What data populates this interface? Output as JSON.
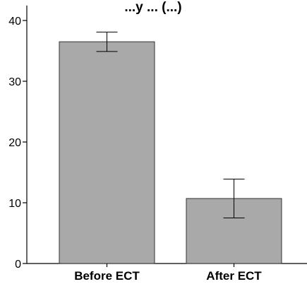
{
  "chart_data": {
    "type": "bar",
    "title": "...y ... (...)",
    "xlabel": "",
    "ylabel": "",
    "categories": [
      "Before ECT",
      "After ECT"
    ],
    "values": [
      36.5,
      10.7
    ],
    "error": {
      "upper": [
        38.1,
        13.9
      ],
      "lower": [
        34.9,
        7.5
      ]
    },
    "ylim": [
      0,
      42
    ],
    "yticks": [
      0,
      10,
      20,
      30,
      40
    ],
    "ytick_labels": [
      "0",
      "10",
      "20",
      "30",
      "40"
    ],
    "grid": false,
    "legend": "none",
    "colors": {
      "bar_fill": "#a9a9a9",
      "bar_stroke": "#333333",
      "axis": "#000000",
      "error_bar": "#000000"
    }
  }
}
